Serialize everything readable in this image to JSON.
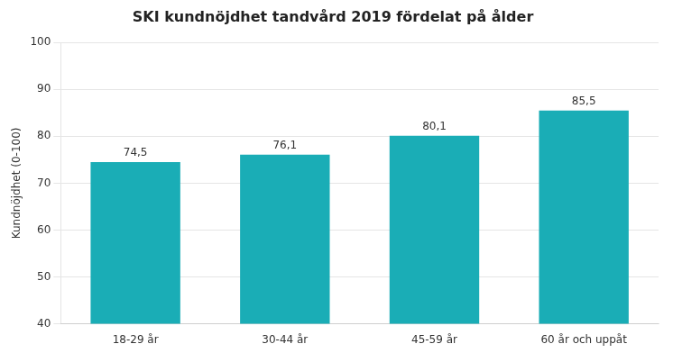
{
  "chart_data": {
    "type": "bar",
    "title": "SKI kundnöjdhet tandvård 2019 fördelat på ålder",
    "categories": [
      "18-29 år",
      "30-44 år",
      "45-59 år",
      "60 år och uppåt"
    ],
    "values": [
      74.5,
      76.1,
      80.1,
      85.5
    ],
    "value_labels": [
      "74,5",
      "76,1",
      "80,1",
      "85,5"
    ],
    "data_labels": true,
    "color": "#1AADB6",
    "ylabel": "Kundnöjdhet (0-100)",
    "ylim": [
      40,
      100
    ],
    "yticks": [
      40,
      50,
      60,
      70,
      80,
      90,
      100
    ],
    "grid": true
  }
}
